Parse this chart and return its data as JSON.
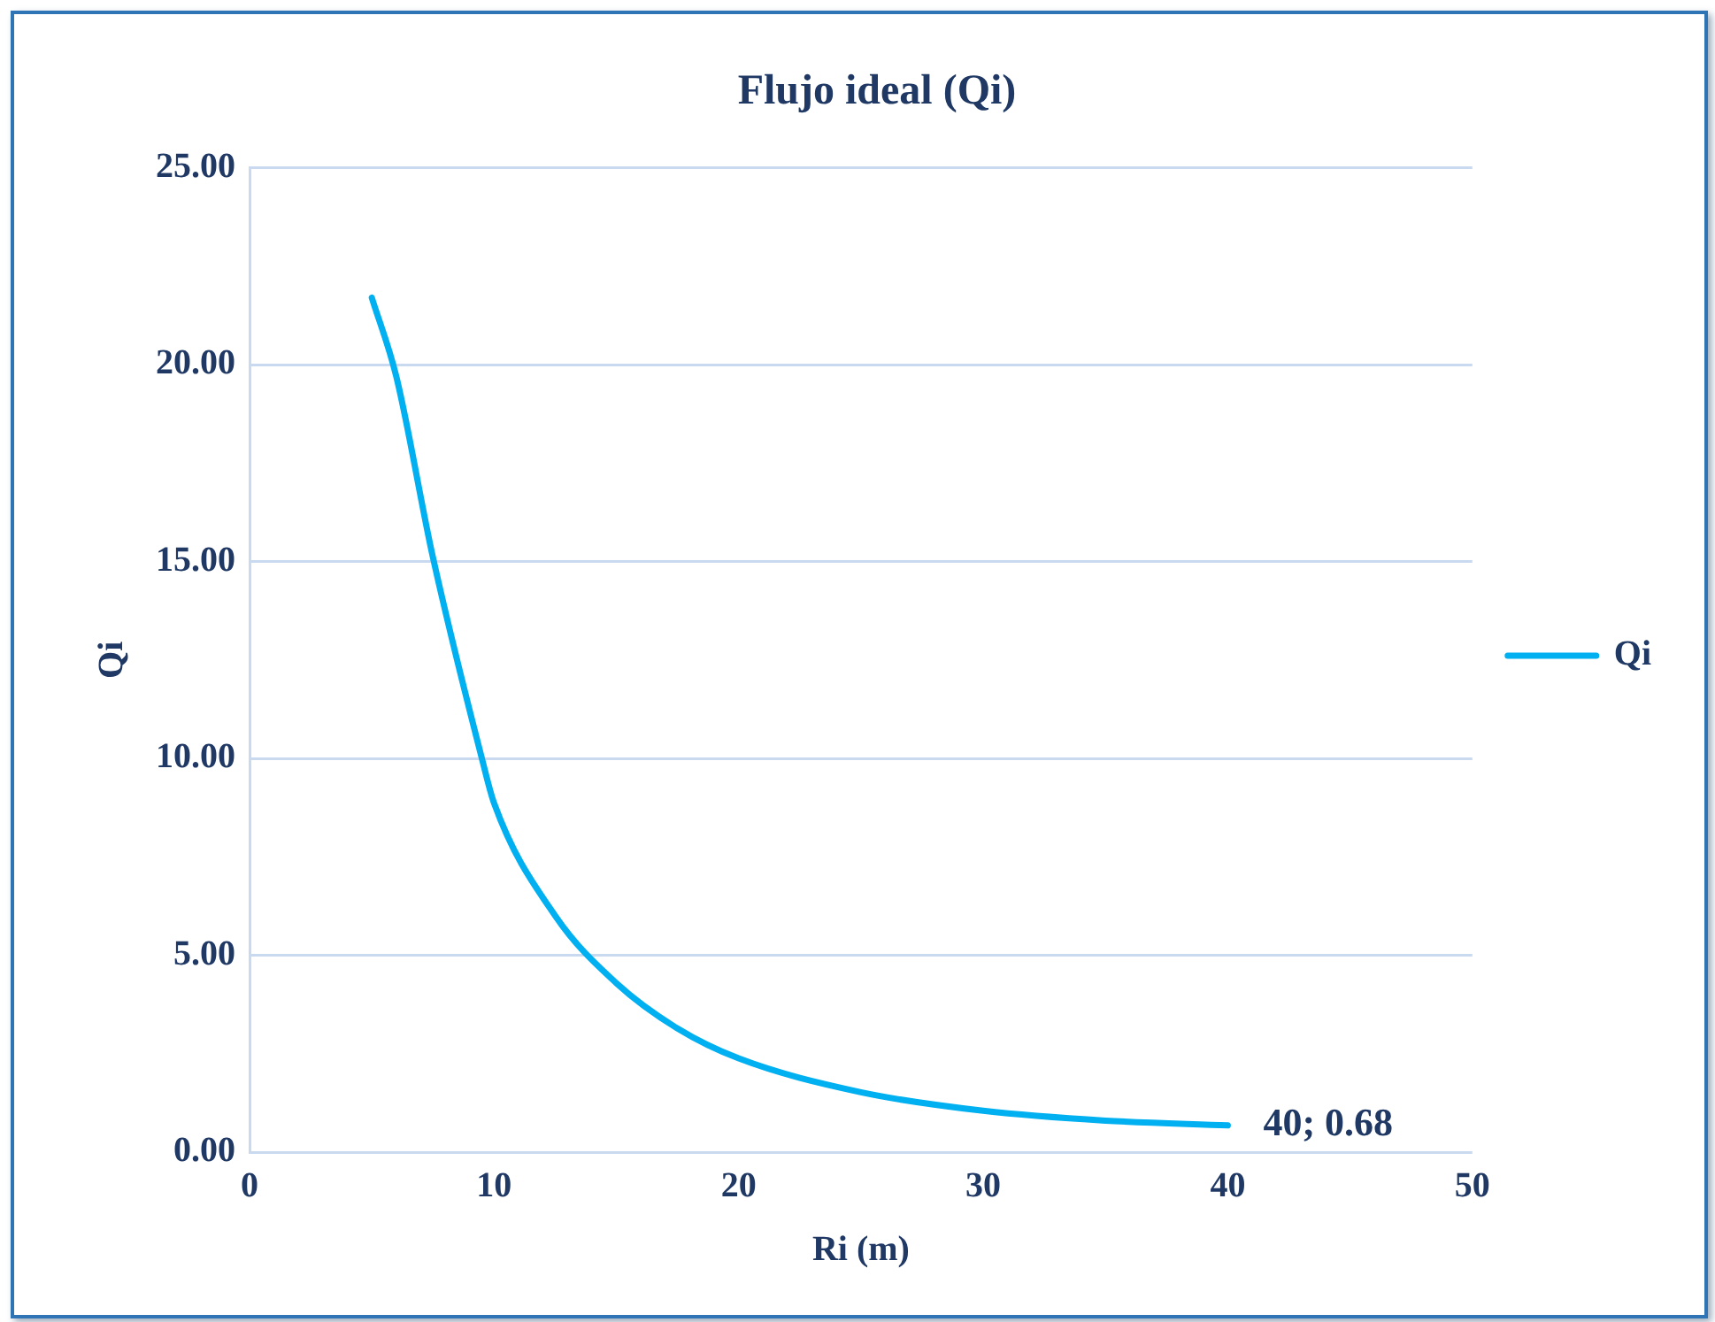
{
  "chart_data": {
    "type": "line",
    "title": "Flujo ideal (Qi)",
    "xlabel": "Ri (m)",
    "ylabel": "Qi",
    "x": [
      5,
      6,
      7.5,
      9.5,
      10,
      12.5,
      15,
      17.5,
      20,
      25,
      30,
      35,
      40
    ],
    "series": [
      {
        "name": "Qi",
        "color": "#00b0f0",
        "values": [
          21.7,
          19.7,
          15.1,
          10,
          8.86,
          6,
          4.29,
          3.14,
          2.38,
          1.52,
          1.05,
          0.8,
          0.68
        ]
      }
    ],
    "xlim": [
      0,
      50
    ],
    "xticks": [
      0,
      10,
      20,
      30,
      40,
      50
    ],
    "ylim": [
      0,
      25
    ],
    "yticks": [
      {
        "value": 0,
        "label": "0.00"
      },
      {
        "value": 5,
        "label": "5.00"
      },
      {
        "value": 10,
        "label": "10.00"
      },
      {
        "value": 15,
        "label": "15.00"
      },
      {
        "value": 20,
        "label": "20.00"
      },
      {
        "value": 25,
        "label": "25.00"
      }
    ],
    "annotations": [
      {
        "text": "40; 0.68",
        "x": 40,
        "y": 0.68
      }
    ],
    "grid": "y",
    "legend": "right",
    "marker": "none",
    "line_style": "solid"
  }
}
